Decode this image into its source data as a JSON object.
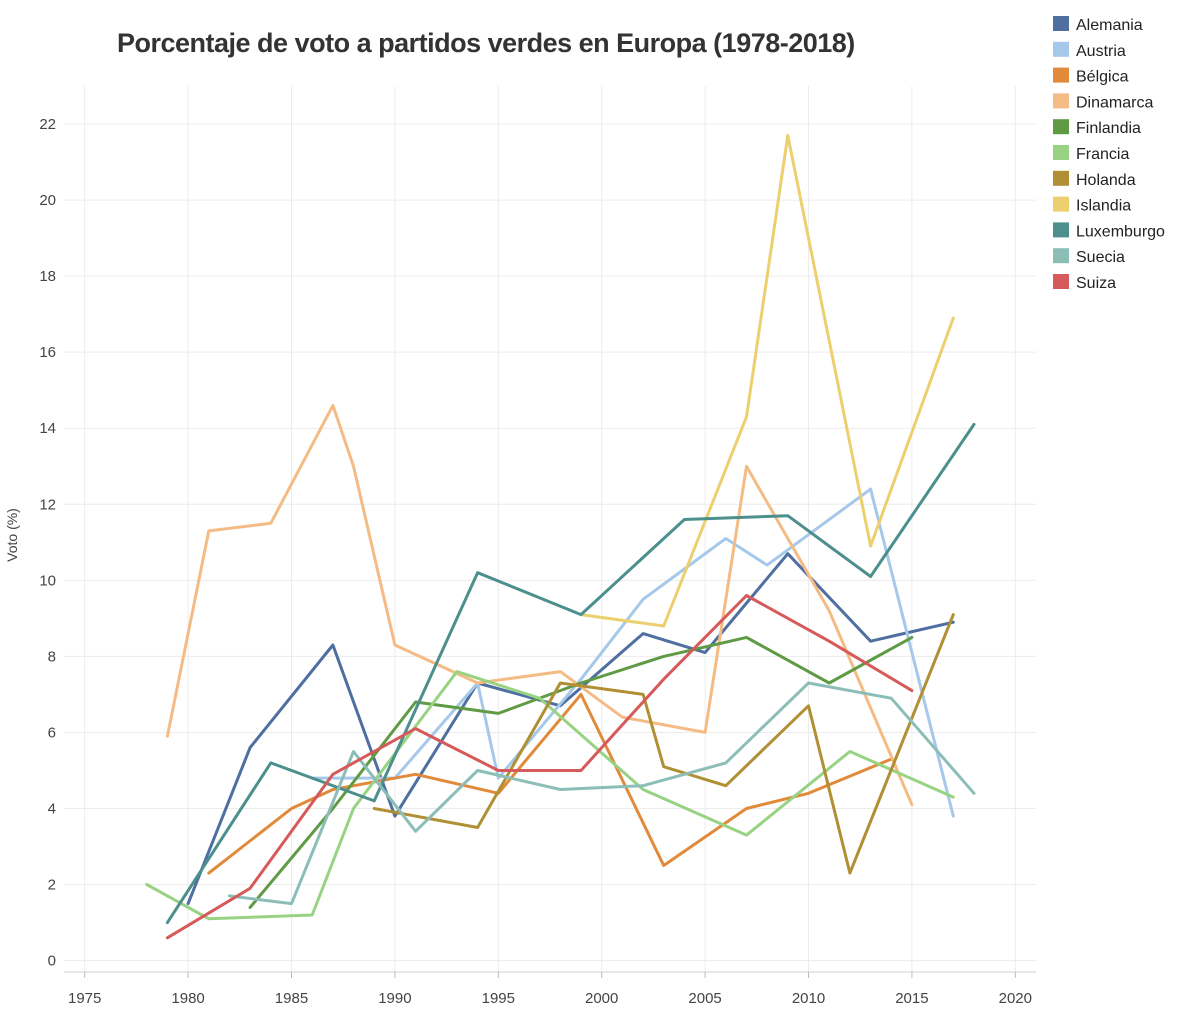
{
  "chart_data": {
    "type": "line",
    "title": "Porcentaje de voto a partidos verdes en Europa (1978-2018)",
    "xlabel": "",
    "ylabel": "Voto (%)",
    "xlim": [
      1974,
      2021
    ],
    "ylim": [
      -0.3,
      23
    ],
    "xticks": [
      1975,
      1980,
      1985,
      1990,
      1995,
      2000,
      2005,
      2010,
      2015,
      2020
    ],
    "yticks": [
      0,
      2,
      4,
      6,
      8,
      10,
      12,
      14,
      16,
      18,
      20,
      22
    ],
    "grid": true,
    "legend": "top-right",
    "series": [
      {
        "name": "Alemania",
        "color": "#4e6fa0",
        "points": [
          [
            1980,
            1.5
          ],
          [
            1983,
            5.6
          ],
          [
            1987,
            8.3
          ],
          [
            1990,
            3.8
          ],
          [
            1994,
            7.3
          ],
          [
            1998,
            6.7
          ],
          [
            2002,
            8.6
          ],
          [
            2005,
            8.1
          ],
          [
            2009,
            10.7
          ],
          [
            2013,
            8.4
          ],
          [
            2017,
            8.9
          ]
        ]
      },
      {
        "name": "Austria",
        "color": "#a6c8ea",
        "points": [
          [
            1986,
            4.8
          ],
          [
            1990,
            4.8
          ],
          [
            1994,
            7.3
          ],
          [
            1995,
            4.8
          ],
          [
            1999,
            7.4
          ],
          [
            2002,
            9.5
          ],
          [
            2006,
            11.1
          ],
          [
            2008,
            10.4
          ],
          [
            2013,
            12.4
          ],
          [
            2017,
            3.8
          ]
        ]
      },
      {
        "name": "Bélgica",
        "color": "#e08a3a",
        "points": [
          [
            1981,
            2.3
          ],
          [
            1985,
            4.0
          ],
          [
            1987,
            4.5
          ],
          [
            1991,
            4.9
          ],
          [
            1995,
            4.4
          ],
          [
            1999,
            7.0
          ],
          [
            2003,
            2.5
          ],
          [
            2007,
            4.0
          ],
          [
            2010,
            4.4
          ],
          [
            2014,
            5.3
          ]
        ]
      },
      {
        "name": "Dinamarca",
        "color": "#f5bb85",
        "points": [
          [
            1979,
            5.9
          ],
          [
            1981,
            11.3
          ],
          [
            1984,
            11.5
          ],
          [
            1987,
            14.6
          ],
          [
            1988,
            13.0
          ],
          [
            1990,
            8.3
          ],
          [
            1994,
            7.3
          ],
          [
            1998,
            7.6
          ],
          [
            2001,
            6.4
          ],
          [
            2005,
            6.0
          ],
          [
            2007,
            13.0
          ],
          [
            2011,
            9.2
          ],
          [
            2015,
            4.1
          ]
        ]
      },
      {
        "name": "Finlandia",
        "color": "#5f9b45",
        "points": [
          [
            1983,
            1.4
          ],
          [
            1987,
            4.0
          ],
          [
            1991,
            6.8
          ],
          [
            1995,
            6.5
          ],
          [
            1999,
            7.3
          ],
          [
            2003,
            8.0
          ],
          [
            2007,
            8.5
          ],
          [
            2011,
            7.3
          ],
          [
            2015,
            8.5
          ]
        ]
      },
      {
        "name": "Francia",
        "color": "#98d383",
        "points": [
          [
            1978,
            2.0
          ],
          [
            1981,
            1.1
          ],
          [
            1986,
            1.2
          ],
          [
            1988,
            4.0
          ],
          [
            1993,
            7.6
          ],
          [
            1997,
            6.9
          ],
          [
            2002,
            4.5
          ],
          [
            2007,
            3.3
          ],
          [
            2012,
            5.5
          ],
          [
            2017,
            4.3
          ]
        ]
      },
      {
        "name": "Holanda",
        "color": "#b08f35",
        "points": [
          [
            1989,
            4.0
          ],
          [
            1994,
            3.5
          ],
          [
            1998,
            7.3
          ],
          [
            2002,
            7.0
          ],
          [
            2003,
            5.1
          ],
          [
            2006,
            4.6
          ],
          [
            2010,
            6.7
          ],
          [
            2012,
            2.3
          ],
          [
            2017,
            9.1
          ]
        ]
      },
      {
        "name": "Islandia",
        "color": "#ecd070",
        "points": [
          [
            1999,
            9.1
          ],
          [
            2003,
            8.8
          ],
          [
            2007,
            14.3
          ],
          [
            2009,
            21.7
          ],
          [
            2013,
            10.9
          ],
          [
            2017,
            16.9
          ]
        ]
      },
      {
        "name": "Luxemburgo",
        "color": "#4c8f8c",
        "points": [
          [
            1979,
            1.0
          ],
          [
            1984,
            5.2
          ],
          [
            1989,
            4.2
          ],
          [
            1994,
            10.2
          ],
          [
            1999,
            9.1
          ],
          [
            2004,
            11.6
          ],
          [
            2009,
            11.7
          ],
          [
            2013,
            10.1
          ],
          [
            2018,
            14.1
          ]
        ]
      },
      {
        "name": "Suecia",
        "color": "#8cbeb7",
        "points": [
          [
            1982,
            1.7
          ],
          [
            1985,
            1.5
          ],
          [
            1988,
            5.5
          ],
          [
            1991,
            3.4
          ],
          [
            1994,
            5.0
          ],
          [
            1998,
            4.5
          ],
          [
            2002,
            4.6
          ],
          [
            2006,
            5.2
          ],
          [
            2010,
            7.3
          ],
          [
            2014,
            6.9
          ],
          [
            2018,
            4.4
          ]
        ]
      },
      {
        "name": "Suiza",
        "color": "#d65a5a",
        "points": [
          [
            1979,
            0.6
          ],
          [
            1983,
            1.9
          ],
          [
            1987,
            4.9
          ],
          [
            1991,
            6.1
          ],
          [
            1995,
            5.0
          ],
          [
            1999,
            5.0
          ],
          [
            2003,
            7.4
          ],
          [
            2007,
            9.6
          ],
          [
            2011,
            8.4
          ],
          [
            2015,
            7.1
          ]
        ]
      }
    ]
  }
}
